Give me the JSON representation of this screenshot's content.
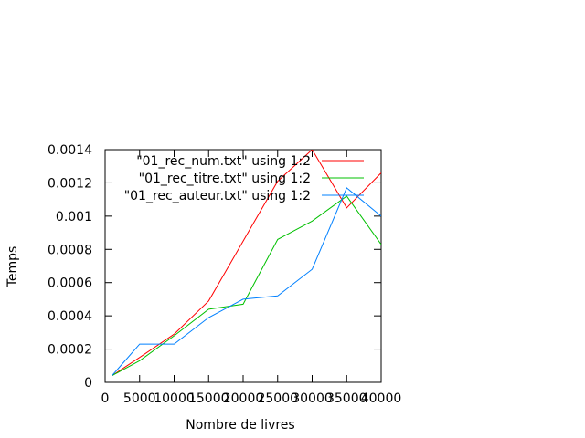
{
  "chart_data": {
    "type": "line",
    "title": "",
    "xlabel": "Nombre de livres",
    "ylabel": "Temps",
    "xlim": [
      0,
      40000
    ],
    "ylim": [
      0,
      0.0014
    ],
    "xticks": [
      0,
      5000,
      10000,
      15000,
      20000,
      25000,
      30000,
      35000,
      40000
    ],
    "yticks": [
      0,
      0.0002,
      0.0004,
      0.0006,
      0.0008,
      0.001,
      0.0012,
      0.0014
    ],
    "xtick_labels": [
      "0",
      "5000",
      "10000",
      "15000",
      "20000",
      "25000",
      "30000",
      "35000",
      "40000"
    ],
    "ytick_labels": [
      "0",
      "0.0002",
      "0.0004",
      "0.0006",
      "0.0008",
      "0.001",
      "0.0012",
      "0.0014"
    ],
    "grid": false,
    "legend_position": "top-right",
    "series": [
      {
        "name": "\"01_rec_num.txt\" using 1:2",
        "color": "#ff0000",
        "x": [
          1000,
          5000,
          10000,
          15000,
          20000,
          25000,
          30000,
          35000,
          40000
        ],
        "y": [
          4e-05,
          0.00015,
          0.00029,
          0.00049,
          0.00085,
          0.00121,
          0.0014,
          0.00105,
          0.00126
        ]
      },
      {
        "name": "\"01_rec_titre.txt\" using 1:2",
        "color": "#00c000",
        "x": [
          1000,
          5000,
          10000,
          15000,
          20000,
          25000,
          30000,
          35000,
          40000
        ],
        "y": [
          4e-05,
          0.00013,
          0.00028,
          0.00044,
          0.00047,
          0.00086,
          0.00097,
          0.00112,
          0.00083
        ]
      },
      {
        "name": "\"01_rec_auteur.txt\" using 1:2",
        "color": "#0080ff",
        "x": [
          1000,
          5000,
          10000,
          15000,
          20000,
          25000,
          30000,
          35000,
          40000
        ],
        "y": [
          4e-05,
          0.00023,
          0.00023,
          0.00039,
          0.0005,
          0.00052,
          0.00068,
          0.00117,
          0.001
        ]
      }
    ]
  }
}
